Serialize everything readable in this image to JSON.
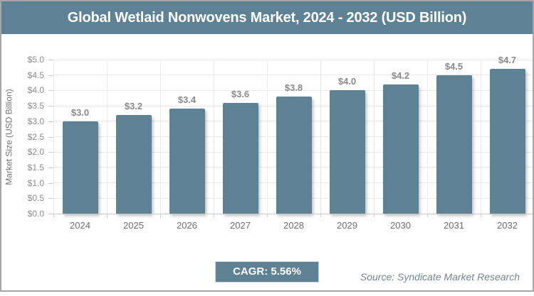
{
  "header": {
    "title": "Global Wetlaid Nonwovens Market, 2024 - 2032 (USD Billion)"
  },
  "chart_data": {
    "type": "bar",
    "title": "Global Wetlaid Nonwovens Market, 2024 - 2032 (USD Billion)",
    "categories": [
      "2024",
      "2025",
      "2026",
      "2027",
      "2028",
      "2029",
      "2030",
      "2031",
      "2032"
    ],
    "values": [
      3.0,
      3.2,
      3.4,
      3.6,
      3.8,
      4.0,
      4.2,
      4.5,
      4.7
    ],
    "bar_labels": [
      "$3.0",
      "$3.2",
      "$3.4",
      "$3.6",
      "$3.8",
      "$4.0",
      "$4.2",
      "$4.5",
      "$4.7"
    ],
    "xlabel": "",
    "ylabel": "Market Size (USD Billion)",
    "ylim": [
      0,
      5
    ],
    "ytick_step": 0.5,
    "ytick_labels": [
      "$0.0",
      "$0.5",
      "$1.0",
      "$1.5",
      "$2.0",
      "$2.5",
      "$3.0",
      "$3.5",
      "$4.0",
      "$4.5",
      "$5.0"
    ],
    "grid": true,
    "legend": false,
    "bar_color": "#5e8294"
  },
  "footer": {
    "cagr": "CAGR: 5.56%",
    "source": "Source: Syndicate Market Research"
  },
  "colors": {
    "accent": "#5e8294",
    "header_bg": "#5e8294",
    "grid": "#e9e9e9",
    "axis": "#c9c9c9",
    "tick_text": "#8c8c8c",
    "bar_label_text": "#8a8a8a",
    "x_label_text": "#6e6e6e",
    "frame_border": "#a6a6a6",
    "source_text": "#72878f",
    "badge_text": "#ffffff",
    "title_text": "#ffffff"
  }
}
